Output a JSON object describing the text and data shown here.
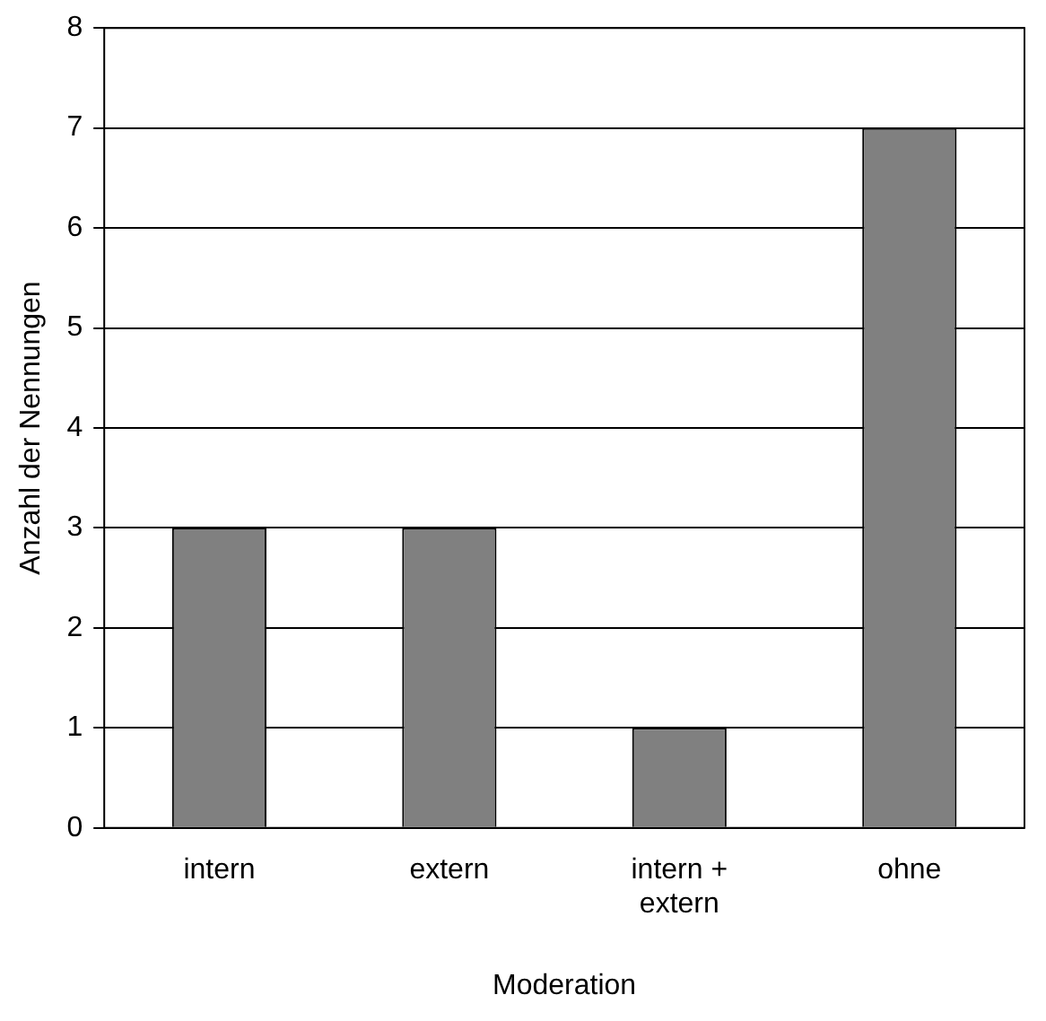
{
  "chart_data": {
    "type": "bar",
    "xlabel": "Moderation",
    "ylabel": "Anzahl der Nennungen",
    "categories": [
      "intern",
      "extern",
      "intern + extern",
      "ohne"
    ],
    "values": [
      3,
      3,
      1,
      7
    ],
    "color": "#808080",
    "ylim": [
      0,
      8
    ],
    "yticks": [
      0,
      1,
      2,
      3,
      4,
      5,
      6,
      7,
      8
    ],
    "grid": "y",
    "legend": false
  }
}
